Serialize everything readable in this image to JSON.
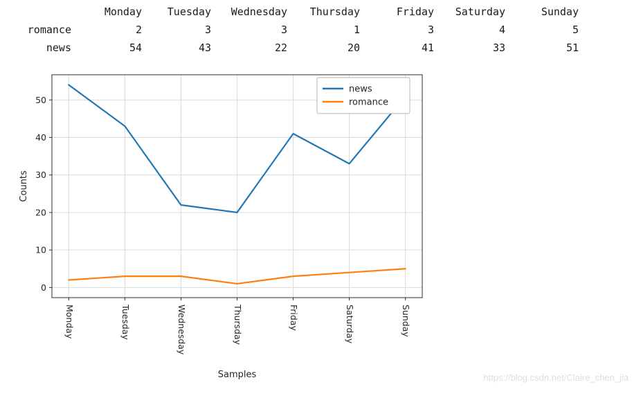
{
  "table": {
    "columns": [
      "Monday",
      "Tuesday",
      "Wednesday",
      "Thursday",
      "Friday",
      "Saturday",
      "Sunday"
    ],
    "rows": [
      {
        "label": "romance",
        "values": [
          2,
          3,
          3,
          1,
          3,
          4,
          5
        ]
      },
      {
        "label": "news",
        "values": [
          54,
          43,
          22,
          20,
          41,
          33,
          51
        ]
      }
    ]
  },
  "chart_data": {
    "type": "line",
    "categories": [
      "Monday",
      "Tuesday",
      "Wednesday",
      "Thursday",
      "Friday",
      "Saturday",
      "Sunday"
    ],
    "series": [
      {
        "name": "news",
        "color": "#1f77b4",
        "values": [
          54,
          43,
          22,
          20,
          41,
          33,
          51
        ]
      },
      {
        "name": "romance",
        "color": "#ff7f0e",
        "values": [
          2,
          3,
          3,
          1,
          3,
          4,
          5
        ]
      }
    ],
    "title": "",
    "xlabel": "Samples",
    "ylabel": "Counts",
    "yticks": [
      0,
      10,
      20,
      30,
      40,
      50
    ],
    "ylim": [
      -2.7,
      56.7
    ],
    "grid": true,
    "legend_position": "upper center-right inside"
  },
  "watermark": {
    "text": "https://blog.csdn.net/Claire_chen_jia"
  }
}
